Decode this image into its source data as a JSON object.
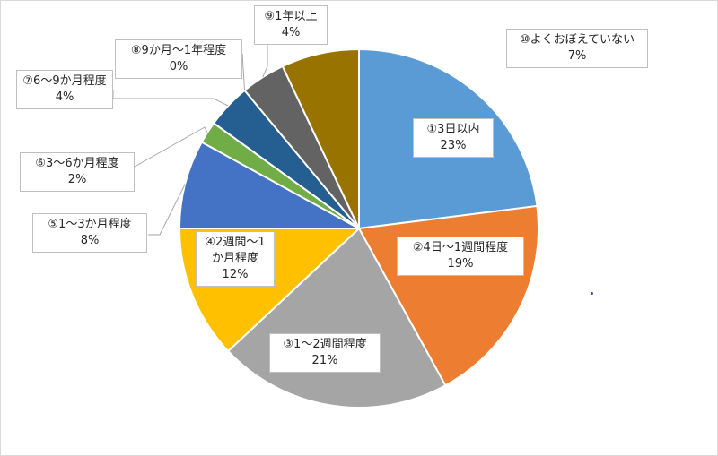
{
  "chart_data": {
    "type": "pie",
    "title": "",
    "start_angle_deg": 0,
    "direction": "clockwise",
    "slices": [
      {
        "name": "①3日以内",
        "value": 23,
        "value_label": "23%",
        "color": "#5b9bd5"
      },
      {
        "name": "②4日～1週間程度",
        "value": 19,
        "value_label": "19%",
        "color": "#ed7d31"
      },
      {
        "name": "③1～2週間程度",
        "value": 21,
        "value_label": "21%",
        "color": "#a5a5a5"
      },
      {
        "name": "④2週間～1か月程度",
        "value": 12,
        "value_label": "12%",
        "color": "#ffc000"
      },
      {
        "name": "⑤1～3か月程度",
        "value": 8,
        "value_label": "8%",
        "color": "#4472c4"
      },
      {
        "name": "⑥3～6か月程度",
        "value": 2,
        "value_label": "2%",
        "color": "#70ad47"
      },
      {
        "name": "⑦6～9か月程度",
        "value": 4,
        "value_label": "4%",
        "color": "#255e91"
      },
      {
        "name": "⑧9か月～1年程度",
        "value": 0,
        "value_label": "0%",
        "color": "#9e480e"
      },
      {
        "name": "⑨1年以上",
        "value": 4,
        "value_label": "4%",
        "color": "#636363"
      },
      {
        "name": "⑩よくおぼえていない",
        "value": 7,
        "value_label": "7%",
        "color": "#997300"
      }
    ],
    "legend": "none",
    "data_labels": "category name and percentage, with leader lines"
  }
}
